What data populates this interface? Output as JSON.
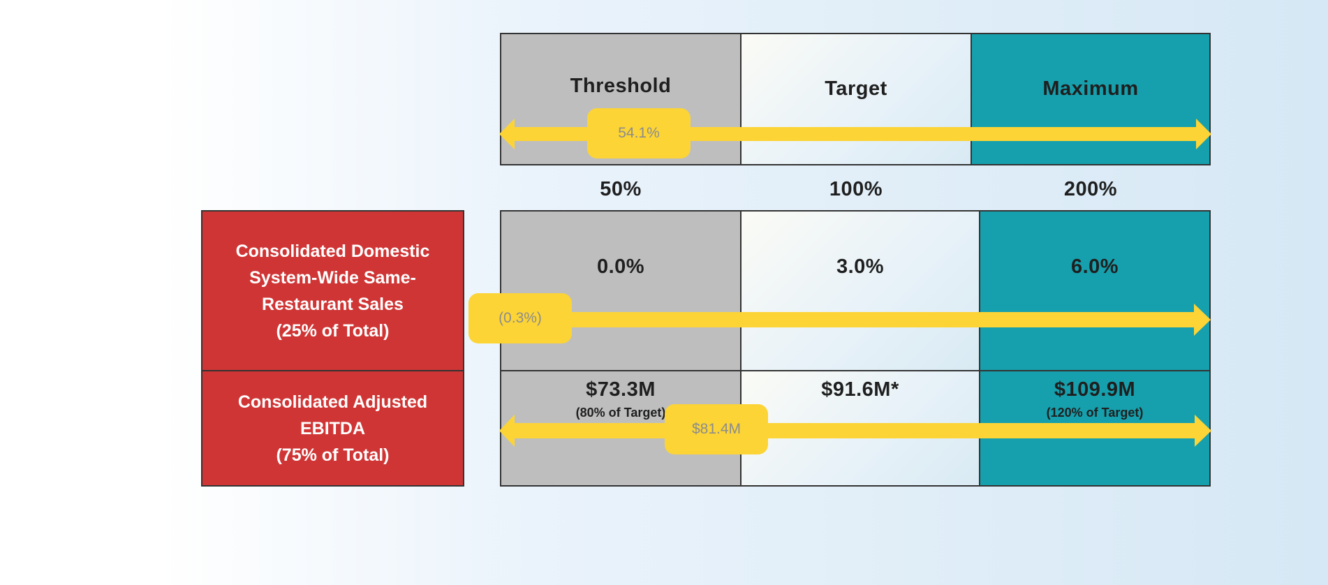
{
  "header": {
    "threshold": "Threshold",
    "target": "Target",
    "maximum": "Maximum",
    "actual_bubble": "54.1%"
  },
  "payouts": {
    "threshold": "50%",
    "target": "100%",
    "maximum": "200%"
  },
  "metrics": [
    {
      "lines": [
        "Consolidated Domestic",
        "System-Wide Same-",
        "Restaurant Sales",
        "(25% of Total)"
      ],
      "threshold": "0.0%",
      "target": "3.0%",
      "maximum": "6.0%",
      "actual": "(0.3%)"
    },
    {
      "lines": [
        "Consolidated Adjusted",
        "EBITDA",
        "(75% of Total)"
      ],
      "threshold": "$73.3M",
      "threshold_note": "(80% of Target)",
      "target": "$91.6M*",
      "maximum": "$109.9M",
      "maximum_note": "(120% of Target)",
      "actual": "$81.4M"
    }
  ],
  "colors": {
    "threshold": "#bebebe",
    "target": "#eef5fa",
    "maximum": "#16a0ad",
    "metric": "#d03535",
    "arrow": "#fcd436"
  }
}
